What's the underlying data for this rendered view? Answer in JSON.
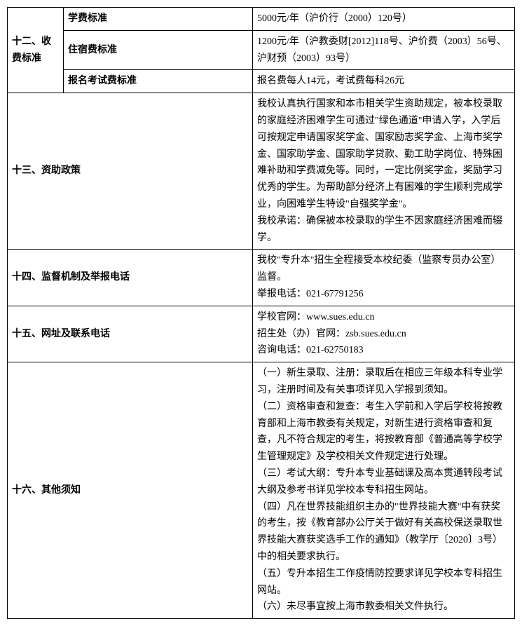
{
  "row12": {
    "label": "十二、收费标准",
    "sub1_label": "学费标准",
    "sub1_value": "5000元/年（沪价行（2000）120号）",
    "sub2_label": "住宿费标准",
    "sub2_value": "1200元/年（沪教委财[2012]118号、沪价费（2003）56号、沪财预（2003）93号）",
    "sub3_label": "报名考试费标准",
    "sub3_value": "报名费每人14元，考试费每科26元"
  },
  "row13": {
    "label": "十三、资助政策",
    "value": "我校认真执行国家和本市相关学生资助规定，被本校录取的家庭经济困难学生可通过\"绿色通道\"申请入学，入学后可按规定申请国家奖学金、国家励志奖学金、上海市奖学金、国家助学金、国家助学贷款、勤工助学岗位、特殊困难补助和学费减免等。同时，一定比例奖学金，奖励学习优秀的学生。为帮助部分经济上有困难的学生顺利完成学业，向困难学生特设\"自强奖学金\"。\n我校承诺：确保被本校录取的学生不因家庭经济困难而辍学。"
  },
  "row14": {
    "label": "十四、监督机制及举报电话",
    "value": "我校\"专升本\"招生全程接受本校纪委（监察专员办公室）监督。\n举报电话：021-67791256"
  },
  "row15": {
    "label": "十五、网址及联系电话",
    "value": "学校官网：www.sues.edu.cn\n招生处（办）官网：zsb.sues.edu.cn\n咨询电话：021-62750183"
  },
  "row16": {
    "label": "十六、其他须知",
    "value": "（一）新生录取、注册：录取后在相应三年级本科专业学习，注册时间及有关事项详见入学报到须知。\n（二）资格审查和复查：考生入学前和入学后学校将按教育部和上海市教委有关规定，对新生进行资格审查和复查，凡不符合规定的考生，将按教育部《普通高等学校学生管理规定》及学校相关文件规定进行处理。\n（三）考试大纲：专升本专业基础课及高本贯通转段考试大纲及参考书详见学校本专科招生网站。\n（四）凡在世界技能组织主办的\"世界技能大赛\"中有获奖的考生，按《教育部办公厅关于做好有关高校保送录取世界技能大赛获奖选手工作的通知》（教学厅〔2020〕3号）中的相关要求执行。\n（五）专升本招生工作疫情防控要求详见学校本专科招生网站。\n（六）未尽事宜按上海市教委相关文件执行。"
  }
}
